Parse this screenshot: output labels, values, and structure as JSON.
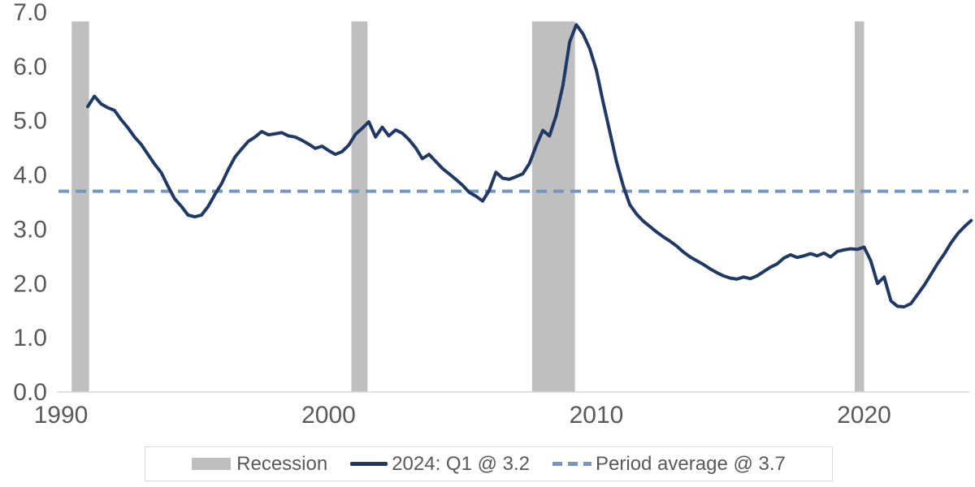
{
  "chart_data": {
    "type": "line",
    "title": "",
    "xlabel": "",
    "ylabel": "",
    "frequency": "quarterly",
    "x_start": "1991 Q1",
    "x_end": "2024 Q1",
    "x_start_year": 1991.0,
    "x_step_years": 0.25,
    "xlim": [
      1990,
      2024.3
    ],
    "ylim": [
      0,
      7
    ],
    "grid": false,
    "legend_position": "bottom",
    "x_ticks": [
      {
        "value": 1990,
        "label": "1990"
      },
      {
        "value": 2000,
        "label": "2000"
      },
      {
        "value": 2010,
        "label": "2010"
      },
      {
        "value": 2020,
        "label": "2020"
      }
    ],
    "y_ticks": [
      {
        "value": 0,
        "label": "0.0"
      },
      {
        "value": 1,
        "label": "1.0"
      },
      {
        "value": 2,
        "label": "2.0"
      },
      {
        "value": 3,
        "label": "3.0"
      },
      {
        "value": 4,
        "label": "4.0"
      },
      {
        "value": 5,
        "label": "5.0"
      },
      {
        "value": 6,
        "label": "6.0"
      },
      {
        "value": 7,
        "label": "7.0"
      }
    ],
    "series": [
      {
        "name": "2024: Q1 @ 3.2",
        "color": "#1f3864",
        "line_width": 4,
        "values": [
          5.26,
          5.45,
          5.31,
          5.24,
          5.19,
          5.02,
          4.87,
          4.7,
          4.56,
          4.38,
          4.2,
          4.04,
          3.79,
          3.56,
          3.42,
          3.26,
          3.23,
          3.26,
          3.42,
          3.64,
          3.84,
          4.1,
          4.33,
          4.48,
          4.62,
          4.7,
          4.8,
          4.74,
          4.76,
          4.78,
          4.72,
          4.7,
          4.64,
          4.57,
          4.49,
          4.53,
          4.45,
          4.38,
          4.43,
          4.55,
          4.75,
          4.86,
          4.98,
          4.7,
          4.88,
          4.72,
          4.83,
          4.77,
          4.65,
          4.5,
          4.3,
          4.38,
          4.25,
          4.12,
          4.02,
          3.92,
          3.81,
          3.68,
          3.61,
          3.52,
          3.72,
          4.05,
          3.94,
          3.92,
          3.97,
          4.02,
          4.21,
          4.54,
          4.82,
          4.72,
          5.1,
          5.65,
          6.45,
          6.77,
          6.6,
          6.33,
          5.93,
          5.35,
          4.8,
          4.25,
          3.8,
          3.45,
          3.28,
          3.15,
          3.05,
          2.95,
          2.86,
          2.78,
          2.69,
          2.58,
          2.49,
          2.42,
          2.35,
          2.27,
          2.2,
          2.14,
          2.1,
          2.08,
          2.12,
          2.09,
          2.14,
          2.22,
          2.3,
          2.36,
          2.47,
          2.53,
          2.48,
          2.51,
          2.55,
          2.51,
          2.56,
          2.49,
          2.59,
          2.62,
          2.64,
          2.63,
          2.67,
          2.42,
          2.0,
          2.12,
          1.68,
          1.58,
          1.57,
          1.63,
          1.8,
          1.97,
          2.17,
          2.37,
          2.55,
          2.75,
          2.92,
          3.05,
          3.16
        ]
      }
    ],
    "average_line": {
      "label": "Period average @ 3.7",
      "value": 3.7,
      "color": "#7597be",
      "style": "dashed"
    },
    "recession_bands": [
      {
        "from": 1990.4,
        "to": 1991.05
      },
      {
        "from": 2000.85,
        "to": 2001.45
      },
      {
        "from": 2007.6,
        "to": 2009.2
      },
      {
        "from": 2019.65,
        "to": 2020.0
      }
    ],
    "recession_band_top_value": 6.83,
    "recession_color": "#bfbfbf"
  },
  "legend": {
    "recession_label": "Recession",
    "series_label": "2024: Q1 @ 3.2",
    "average_label": "Period average @ 3.7"
  },
  "colors": {
    "series_line": "#1f3864",
    "average_line": "#7597be",
    "recession_band": "#bfbfbf",
    "axis_text": "#595959",
    "axis_line": "#d9d9d9",
    "legend_border": "#d9d9d9",
    "background": "#ffffff"
  }
}
